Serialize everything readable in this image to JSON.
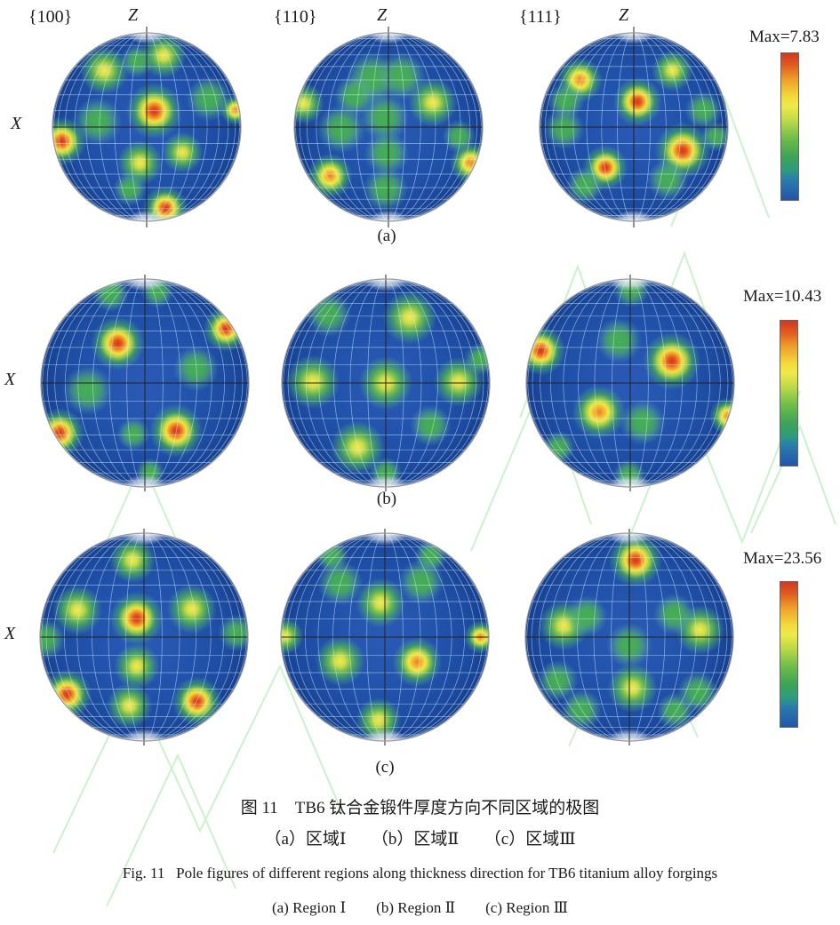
{
  "page": {
    "captions": {
      "zh_title": "图 11　TB6 钛合金锻件厚度方向不同区域的极图",
      "zh_sub": "（a）区域Ⅰ　　（b）区域Ⅱ　　（c）区域Ⅲ",
      "en_title": "Fig. 11   Pole figures of different regions along thickness direction for TB6 titanium alloy forgings",
      "en_sub": "(a) Region Ⅰ　　(b) Region Ⅱ　　(c) Region Ⅲ"
    }
  },
  "chart_data": {
    "type": "heatmap",
    "subtype": "crystallographic pole figures (stereographic projections), 3 thickness regions x 3 pole families",
    "pole_families": [
      "{100}",
      "{110}",
      "{111}"
    ],
    "axes": {
      "z_label": "Z",
      "x_label": "X"
    },
    "sphere_color": "#1f50a8",
    "colorbar": {
      "orientation": "vertical",
      "stops": [
        {
          "pos": 0.0,
          "color": "#d2381d"
        },
        {
          "pos": 0.08,
          "color": "#e05a20"
        },
        {
          "pos": 0.18,
          "color": "#efa02b"
        },
        {
          "pos": 0.3,
          "color": "#f2dc3c"
        },
        {
          "pos": 0.36,
          "color": "#eeea4a"
        },
        {
          "pos": 0.46,
          "color": "#bcd948"
        },
        {
          "pos": 0.58,
          "color": "#6fbd4b"
        },
        {
          "pos": 0.7,
          "color": "#3fa454"
        },
        {
          "pos": 0.8,
          "color": "#2f9a80"
        },
        {
          "pos": 0.86,
          "color": "#2a7cab"
        },
        {
          "pos": 1.0,
          "color": "#2255a8"
        }
      ]
    },
    "rows": [
      {
        "id": "a",
        "label": "(a)",
        "max": 7.83,
        "max_label": "Max=7.83",
        "panels": [
          {
            "hotspots": [
              {
                "x": -0.45,
                "y": -0.6,
                "r": 0.26,
                "level": "yellow"
              },
              {
                "x": -0.1,
                "y": -0.7,
                "r": 0.18,
                "level": "green"
              },
              {
                "x": 0.18,
                "y": -0.76,
                "r": 0.24,
                "level": "yellow"
              },
              {
                "x": 0.08,
                "y": -0.17,
                "r": 0.3,
                "level": "red"
              },
              {
                "x": -0.52,
                "y": -0.06,
                "r": 0.26,
                "level": "green"
              },
              {
                "x": -0.9,
                "y": 0.15,
                "r": 0.26,
                "level": "red"
              },
              {
                "x": 0.66,
                "y": -0.3,
                "r": 0.24,
                "level": "green"
              },
              {
                "x": 0.94,
                "y": -0.18,
                "r": 0.16,
                "level": "orange"
              },
              {
                "x": 0.38,
                "y": 0.27,
                "r": 0.22,
                "level": "yellow"
              },
              {
                "x": -0.07,
                "y": 0.38,
                "r": 0.24,
                "level": "yellow"
              },
              {
                "x": -0.18,
                "y": 0.66,
                "r": 0.18,
                "level": "green"
              },
              {
                "x": 0.2,
                "y": 0.86,
                "r": 0.24,
                "level": "red"
              }
            ]
          },
          {
            "hotspots": [
              {
                "x": -0.17,
                "y": -0.52,
                "r": 0.28,
                "level": "green"
              },
              {
                "x": 0.14,
                "y": -0.54,
                "r": 0.26,
                "level": "green"
              },
              {
                "x": -0.36,
                "y": -0.33,
                "r": 0.22,
                "level": "green"
              },
              {
                "x": -0.9,
                "y": -0.25,
                "r": 0.22,
                "level": "yellow"
              },
              {
                "x": 0.47,
                "y": -0.26,
                "r": 0.26,
                "level": "yellow"
              },
              {
                "x": -0.5,
                "y": 0.02,
                "r": 0.26,
                "level": "green"
              },
              {
                "x": -0.04,
                "y": -0.1,
                "r": 0.26,
                "level": "green"
              },
              {
                "x": -0.02,
                "y": 0.28,
                "r": 0.24,
                "level": "green"
              },
              {
                "x": 0.75,
                "y": 0.1,
                "r": 0.18,
                "level": "green"
              },
              {
                "x": -0.62,
                "y": 0.52,
                "r": 0.24,
                "level": "orange"
              },
              {
                "x": 0.87,
                "y": 0.38,
                "r": 0.22,
                "level": "orange"
              },
              {
                "x": -0.03,
                "y": 0.66,
                "r": 0.24,
                "level": "green"
              }
            ]
          },
          {
            "hotspots": [
              {
                "x": -0.57,
                "y": -0.5,
                "r": 0.24,
                "level": "orange"
              },
              {
                "x": -0.72,
                "y": -0.28,
                "r": 0.2,
                "level": "green"
              },
              {
                "x": 0.41,
                "y": -0.6,
                "r": 0.22,
                "level": "yellow"
              },
              {
                "x": 0.04,
                "y": -0.27,
                "r": 0.26,
                "level": "red"
              },
              {
                "x": -0.74,
                "y": 0.02,
                "r": 0.22,
                "level": "green"
              },
              {
                "x": 0.74,
                "y": -0.18,
                "r": 0.2,
                "level": "green"
              },
              {
                "x": 0.52,
                "y": 0.25,
                "r": 0.3,
                "level": "red"
              },
              {
                "x": 0.87,
                "y": 0.1,
                "r": 0.16,
                "level": "green"
              },
              {
                "x": -0.3,
                "y": 0.43,
                "r": 0.24,
                "level": "red"
              },
              {
                "x": -0.52,
                "y": 0.62,
                "r": 0.2,
                "level": "green"
              },
              {
                "x": 0.36,
                "y": 0.56,
                "r": 0.22,
                "level": "green"
              }
            ]
          }
        ]
      },
      {
        "id": "b",
        "label": "(b)",
        "max": 10.43,
        "max_label": "Max=10.43",
        "panels": [
          {
            "hotspots": [
              {
                "x": -0.26,
                "y": -0.38,
                "r": 0.26,
                "level": "red"
              },
              {
                "x": 0.78,
                "y": -0.52,
                "r": 0.22,
                "level": "red"
              },
              {
                "x": -0.33,
                "y": -0.86,
                "r": 0.18,
                "level": "green"
              },
              {
                "x": 0.12,
                "y": -0.88,
                "r": 0.16,
                "level": "green"
              },
              {
                "x": -0.55,
                "y": 0.07,
                "r": 0.24,
                "level": "green"
              },
              {
                "x": 0.49,
                "y": -0.14,
                "r": 0.22,
                "level": "green"
              },
              {
                "x": -0.82,
                "y": 0.48,
                "r": 0.24,
                "level": "red"
              },
              {
                "x": 0.3,
                "y": 0.46,
                "r": 0.26,
                "level": "red"
              },
              {
                "x": -0.11,
                "y": 0.49,
                "r": 0.16,
                "level": "green"
              },
              {
                "x": 0.05,
                "y": 0.86,
                "r": 0.14,
                "level": "green"
              }
            ]
          },
          {
            "hotspots": [
              {
                "x": 0.0,
                "y": 0.0,
                "r": 0.26,
                "level": "yellow"
              },
              {
                "x": -0.7,
                "y": -0.01,
                "r": 0.26,
                "level": "yellow"
              },
              {
                "x": 0.7,
                "y": -0.01,
                "r": 0.24,
                "level": "yellow"
              },
              {
                "x": 0.23,
                "y": -0.63,
                "r": 0.26,
                "level": "yellow"
              },
              {
                "x": -0.55,
                "y": -0.66,
                "r": 0.22,
                "level": "green"
              },
              {
                "x": -0.27,
                "y": 0.62,
                "r": 0.26,
                "level": "yellow"
              },
              {
                "x": 0.43,
                "y": 0.41,
                "r": 0.2,
                "level": "green"
              },
              {
                "x": 0.91,
                "y": -0.23,
                "r": 0.16,
                "level": "green"
              },
              {
                "x": 0.0,
                "y": 0.87,
                "r": 0.16,
                "level": "green"
              }
            ]
          },
          {
            "hotspots": [
              {
                "x": -0.86,
                "y": -0.31,
                "r": 0.24,
                "level": "red"
              },
              {
                "x": 0.4,
                "y": -0.21,
                "r": 0.28,
                "level": "red"
              },
              {
                "x": -0.11,
                "y": -0.41,
                "r": 0.22,
                "level": "green"
              },
              {
                "x": 0.01,
                "y": -0.9,
                "r": 0.18,
                "level": "green"
              },
              {
                "x": -0.3,
                "y": 0.28,
                "r": 0.26,
                "level": "orange"
              },
              {
                "x": 0.12,
                "y": 0.38,
                "r": 0.22,
                "level": "green"
              },
              {
                "x": 0.94,
                "y": 0.32,
                "r": 0.18,
                "level": "orange"
              },
              {
                "x": -0.69,
                "y": 0.62,
                "r": 0.16,
                "level": "green"
              },
              {
                "x": -0.01,
                "y": 0.89,
                "r": 0.16,
                "level": "green"
              }
            ]
          }
        ]
      },
      {
        "id": "c",
        "label": "(c)",
        "max": 23.56,
        "max_label": "Max=23.56",
        "panels": [
          {
            "hotspots": [
              {
                "x": -0.11,
                "y": -0.74,
                "r": 0.22,
                "level": "yellow"
              },
              {
                "x": -0.64,
                "y": -0.26,
                "r": 0.24,
                "level": "yellow"
              },
              {
                "x": 0.46,
                "y": -0.27,
                "r": 0.24,
                "level": "yellow"
              },
              {
                "x": -0.07,
                "y": -0.18,
                "r": 0.26,
                "level": "red"
              },
              {
                "x": -0.95,
                "y": 0.02,
                "r": 0.2,
                "level": "green"
              },
              {
                "x": 0.89,
                "y": -0.04,
                "r": 0.18,
                "level": "green"
              },
              {
                "x": -0.07,
                "y": 0.28,
                "r": 0.22,
                "level": "yellow"
              },
              {
                "x": -0.74,
                "y": 0.55,
                "r": 0.24,
                "level": "red"
              },
              {
                "x": 0.51,
                "y": 0.62,
                "r": 0.24,
                "level": "red"
              },
              {
                "x": -0.14,
                "y": 0.66,
                "r": 0.22,
                "level": "yellow"
              }
            ]
          },
          {
            "hotspots": [
              {
                "x": -0.51,
                "y": -0.78,
                "r": 0.16,
                "level": "green"
              },
              {
                "x": 0.44,
                "y": -0.78,
                "r": 0.16,
                "level": "green"
              },
              {
                "x": -0.43,
                "y": -0.52,
                "r": 0.22,
                "level": "green"
              },
              {
                "x": 0.35,
                "y": -0.53,
                "r": 0.22,
                "level": "green"
              },
              {
                "x": -0.04,
                "y": -0.33,
                "r": 0.24,
                "level": "yellow"
              },
              {
                "x": -0.96,
                "y": -0.01,
                "r": 0.18,
                "level": "yellow"
              },
              {
                "x": 0.92,
                "y": 0.0,
                "r": 0.16,
                "level": "orange"
              },
              {
                "x": -0.43,
                "y": 0.23,
                "r": 0.24,
                "level": "yellow"
              },
              {
                "x": 0.31,
                "y": 0.24,
                "r": 0.24,
                "level": "orange"
              },
              {
                "x": -0.06,
                "y": 0.8,
                "r": 0.22,
                "level": "yellow"
              }
            ]
          },
          {
            "hotspots": [
              {
                "x": 0.06,
                "y": -0.74,
                "r": 0.26,
                "level": "red"
              },
              {
                "x": -0.63,
                "y": -0.11,
                "r": 0.24,
                "level": "yellow"
              },
              {
                "x": -0.41,
                "y": -0.2,
                "r": 0.2,
                "level": "green"
              },
              {
                "x": 0.68,
                "y": -0.07,
                "r": 0.24,
                "level": "yellow"
              },
              {
                "x": 0.43,
                "y": -0.22,
                "r": 0.2,
                "level": "green"
              },
              {
                "x": 0.0,
                "y": 0.08,
                "r": 0.22,
                "level": "green"
              },
              {
                "x": 0.03,
                "y": 0.49,
                "r": 0.24,
                "level": "yellow"
              },
              {
                "x": -0.69,
                "y": 0.42,
                "r": 0.2,
                "level": "green"
              },
              {
                "x": -0.46,
                "y": 0.7,
                "r": 0.2,
                "level": "green"
              },
              {
                "x": 0.66,
                "y": 0.53,
                "r": 0.2,
                "level": "green"
              },
              {
                "x": 0.44,
                "y": 0.71,
                "r": 0.18,
                "level": "green"
              }
            ]
          }
        ]
      }
    ]
  }
}
